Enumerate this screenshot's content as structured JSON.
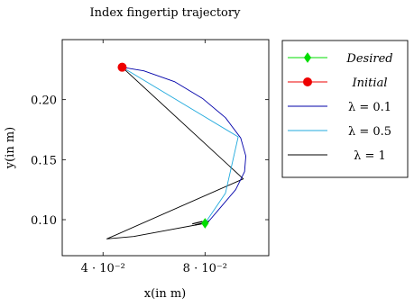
{
  "chart_data": {
    "type": "line",
    "title": "Index fingertip trajectory",
    "xlabel": "x(in m)",
    "ylabel": "y(in m)",
    "xlim": [
      0.024,
      0.105
    ],
    "ylim": [
      0.07,
      0.25
    ],
    "xticks": [
      {
        "value": 0.04,
        "label": "4 · 10⁻²"
      },
      {
        "value": 0.08,
        "label": "8 · 10⁻²"
      }
    ],
    "yticks": [
      {
        "value": 0.1,
        "label": "0.10"
      },
      {
        "value": 0.15,
        "label": "0.15"
      },
      {
        "value": 0.2,
        "label": "0.20"
      }
    ],
    "grid": false,
    "legend_position": "outside-right",
    "legend": [
      {
        "label": "Desired",
        "style": "italic"
      },
      {
        "label": "Initial",
        "style": "italic"
      },
      {
        "label": "λ = 0.1",
        "style": "normal"
      },
      {
        "label": "λ = 0.5",
        "style": "normal"
      },
      {
        "label": "λ = 1",
        "style": "normal"
      }
    ],
    "colors": {
      "desired": "#00dd00",
      "initial": "#ee0000",
      "lambda_0_1": "#0000aa",
      "lambda_0_5": "#22aadd",
      "lambda_1": "#000000"
    },
    "series": [
      {
        "key": "desired",
        "marker": "diamond",
        "x": [
          0.08
        ],
        "y": [
          0.097
        ]
      },
      {
        "key": "initial",
        "marker": "circle",
        "x": [
          0.0475
        ],
        "y": [
          0.227
        ]
      },
      {
        "key": "lambda_0_1",
        "x": [
          0.0475,
          0.056,
          0.068,
          0.079,
          0.088,
          0.094,
          0.096,
          0.0955,
          0.092,
          0.086,
          0.082,
          0.0805
        ],
        "y": [
          0.227,
          0.224,
          0.215,
          0.201,
          0.185,
          0.168,
          0.153,
          0.14,
          0.125,
          0.11,
          0.1,
          0.097
        ]
      },
      {
        "key": "lambda_0_5",
        "x": [
          0.0475,
          0.093,
          0.088,
          0.08
        ],
        "y": [
          0.227,
          0.169,
          0.122,
          0.097
        ]
      },
      {
        "key": "lambda_1",
        "x": [
          0.0475,
          0.095,
          0.0415,
          0.052,
          0.08
        ],
        "y": [
          0.227,
          0.134,
          0.084,
          0.086,
          0.097
        ]
      }
    ]
  }
}
